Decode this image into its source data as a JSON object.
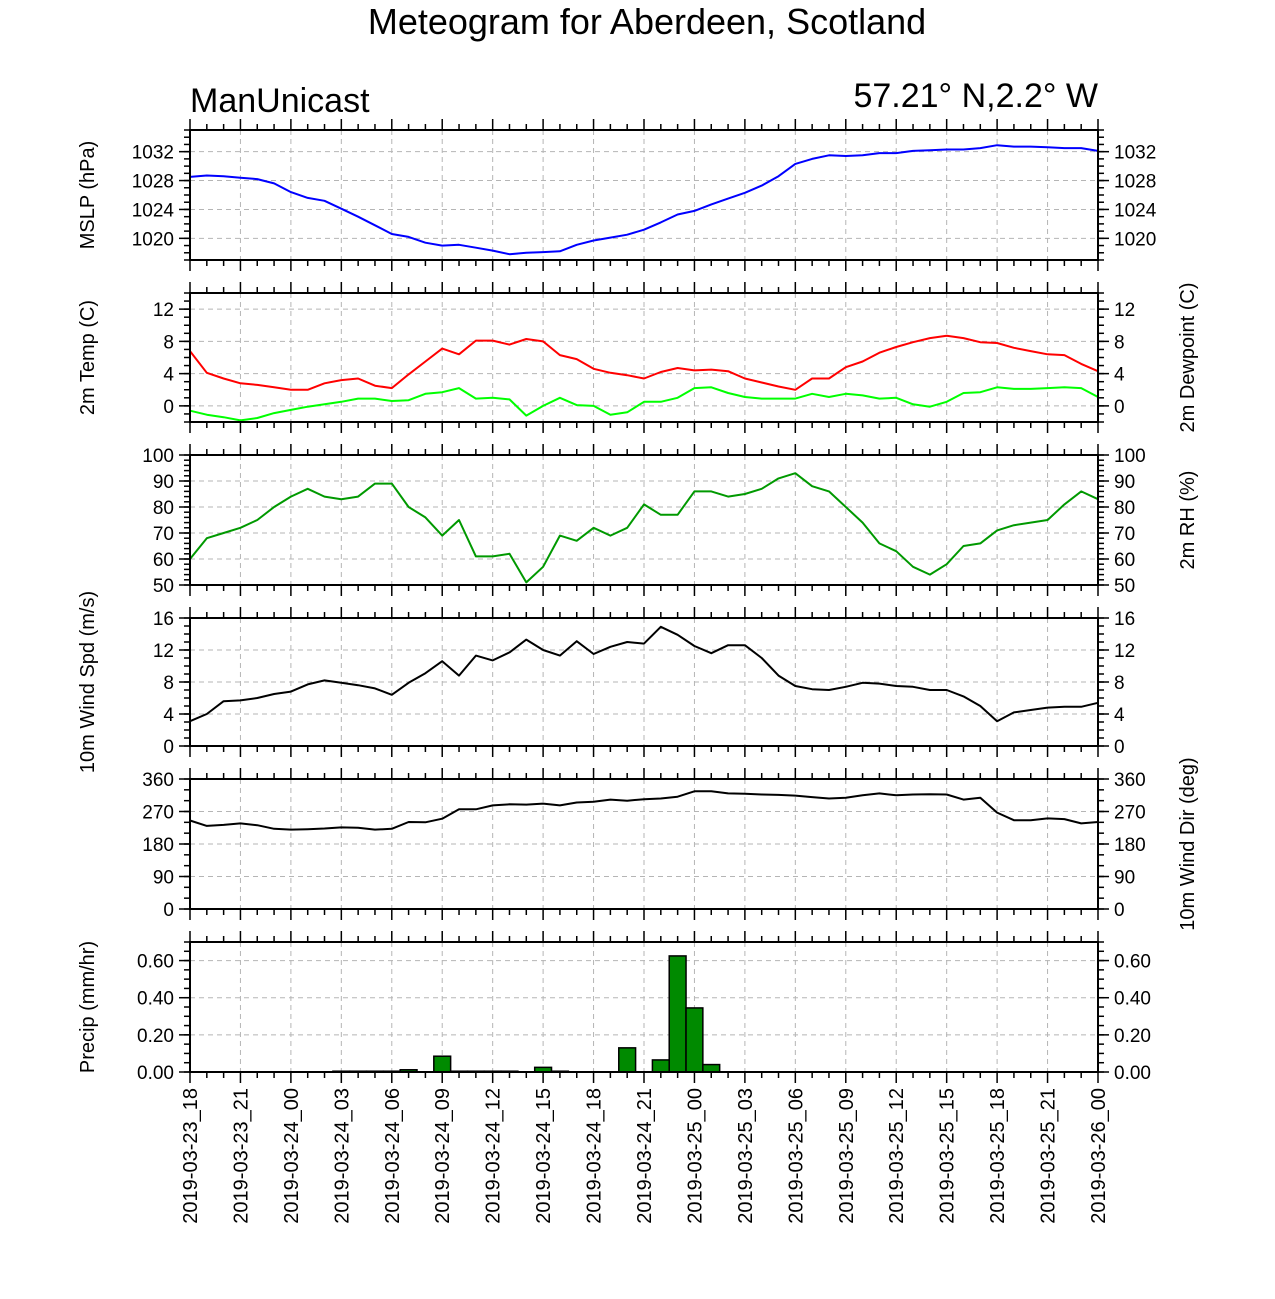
{
  "title": "Meteogram for Aberdeen, Scotland",
  "subtitle_left": "ManUnicast",
  "subtitle_right": "57.21° N,2.2° W",
  "time_labels": [
    "2019-03-23_18",
    "2019-03-23_21",
    "2019-03-24_00",
    "2019-03-24_03",
    "2019-03-24_06",
    "2019-03-24_09",
    "2019-03-24_12",
    "2019-03-24_15",
    "2019-03-24_18",
    "2019-03-24_21",
    "2019-03-25_00",
    "2019-03-25_03",
    "2019-03-25_06",
    "2019-03-25_09",
    "2019-03-25_12",
    "2019-03-25_15",
    "2019-03-25_18",
    "2019-03-25_21",
    "2019-03-26_00"
  ],
  "chart_data": [
    {
      "id": "mslp",
      "type": "line",
      "x_unit": "hours since 2019-03-23_18",
      "xlim": [
        0,
        54
      ],
      "ylabel_left": "MSLP (hPa)",
      "ylabel_right": "",
      "ylim": [
        1017,
        1035
      ],
      "yticks": [
        1020,
        1024,
        1028,
        1032
      ],
      "ytick_labels": [
        "1020",
        "1024",
        "1028",
        "1032"
      ],
      "minor_step": 1,
      "grid": true,
      "series": [
        {
          "color": "#0000ff",
          "x": [
            0,
            1,
            2,
            3,
            4,
            5,
            6,
            7,
            8,
            9,
            10,
            11,
            12,
            13,
            14,
            15,
            16,
            17,
            18,
            19,
            20,
            21,
            22,
            23,
            24,
            25,
            26,
            27,
            28,
            29,
            30,
            31,
            32,
            33,
            34,
            35,
            36,
            37,
            38,
            39,
            40,
            41,
            42,
            43,
            44,
            45,
            46,
            47,
            48,
            49,
            50,
            51,
            52,
            53,
            54
          ],
          "y": [
            1028.5,
            1028.7,
            1028.6,
            1028.4,
            1028.2,
            1027.6,
            1026.4,
            1025.6,
            1025.2,
            1024.1,
            1023.0,
            1021.8,
            1020.6,
            1020.2,
            1019.4,
            1019.0,
            1019.1,
            1018.7,
            1018.3,
            1017.8,
            1018.0,
            1018.1,
            1018.2,
            1019.1,
            1019.7,
            1020.1,
            1020.5,
            1021.2,
            1022.2,
            1023.3,
            1023.8,
            1024.7,
            1025.5,
            1026.3,
            1027.3,
            1028.6,
            1030.3,
            1031.0,
            1031.5,
            1031.4,
            1031.5,
            1031.8,
            1031.8,
            1032.1,
            1032.2,
            1032.3,
            1032.3,
            1032.5,
            1032.9,
            1032.7,
            1032.7,
            1032.6,
            1032.5,
            1032.5,
            1032.1
          ]
        }
      ]
    },
    {
      "id": "temp",
      "type": "line",
      "x_unit": "hours since 2019-03-23_18",
      "xlim": [
        0,
        54
      ],
      "ylabel_left": "2m Temp (C)",
      "ylabel_right": "2m Dewpoint (C)",
      "ylim": [
        -2,
        14
      ],
      "yticks": [
        0,
        4,
        8,
        12
      ],
      "ytick_labels": [
        "0",
        "4",
        "8",
        "12"
      ],
      "minor_step": 1,
      "grid": true,
      "series": [
        {
          "color": "#ff0000",
          "x": [
            0,
            1,
            2,
            3,
            4,
            5,
            6,
            7,
            8,
            9,
            10,
            11,
            12,
            13,
            14,
            15,
            16,
            17,
            18,
            19,
            20,
            21,
            22,
            23,
            24,
            25,
            26,
            27,
            28,
            29,
            30,
            31,
            32,
            33,
            34,
            35,
            36,
            37,
            38,
            39,
            40,
            41,
            42,
            43,
            44,
            45,
            46,
            47,
            48,
            49,
            50,
            51,
            52,
            53,
            54
          ],
          "y": [
            6.8,
            4.1,
            3.4,
            2.8,
            2.6,
            2.3,
            2.0,
            2.0,
            2.8,
            3.2,
            3.4,
            2.5,
            2.2,
            3.9,
            5.5,
            7.1,
            6.4,
            8.1,
            8.1,
            7.6,
            8.3,
            8.0,
            6.3,
            5.8,
            4.6,
            4.1,
            3.8,
            3.4,
            4.2,
            4.7,
            4.4,
            4.5,
            4.3,
            3.4,
            2.9,
            2.4,
            2.0,
            3.4,
            3.4,
            4.8,
            5.5,
            6.6,
            7.3,
            7.9,
            8.4,
            8.7,
            8.4,
            7.9,
            7.8,
            7.2,
            6.8,
            6.4,
            6.3,
            5.2,
            4.3
          ]
        },
        {
          "color": "#00ff00",
          "x": [
            0,
            1,
            2,
            3,
            4,
            5,
            6,
            7,
            8,
            9,
            10,
            11,
            12,
            13,
            14,
            15,
            16,
            17,
            18,
            19,
            20,
            21,
            22,
            23,
            24,
            25,
            26,
            27,
            28,
            29,
            30,
            31,
            32,
            33,
            34,
            35,
            36,
            37,
            38,
            39,
            40,
            41,
            42,
            43,
            44,
            45,
            46,
            47,
            48,
            49,
            50,
            51,
            52,
            53,
            54
          ],
          "y": [
            -0.6,
            -1.1,
            -1.4,
            -1.8,
            -1.5,
            -0.9,
            -0.5,
            -0.1,
            0.2,
            0.5,
            0.9,
            0.9,
            0.6,
            0.7,
            1.5,
            1.7,
            2.2,
            0.9,
            1.0,
            0.8,
            -1.2,
            0.0,
            1.0,
            0.1,
            0.0,
            -1.1,
            -0.8,
            0.5,
            0.5,
            1.0,
            2.2,
            2.3,
            1.6,
            1.1,
            0.9,
            0.9,
            0.9,
            1.5,
            1.1,
            1.5,
            1.3,
            0.9,
            1.0,
            0.2,
            -0.1,
            0.5,
            1.6,
            1.7,
            2.3,
            2.1,
            2.1,
            2.2,
            2.3,
            2.2,
            1.1
          ]
        }
      ]
    },
    {
      "id": "rh",
      "type": "line",
      "x_unit": "hours since 2019-03-23_18",
      "xlim": [
        0,
        54
      ],
      "ylabel_left": "",
      "ylabel_right": "2m RH (%)",
      "ylim": [
        50,
        100
      ],
      "yticks": [
        50,
        60,
        70,
        80,
        90,
        100
      ],
      "ytick_labels": [
        "50",
        "60",
        "70",
        "80",
        "90",
        "100"
      ],
      "minor_step": 2,
      "grid": true,
      "series": [
        {
          "color": "#009900",
          "x": [
            0,
            1,
            2,
            3,
            4,
            5,
            6,
            7,
            8,
            9,
            10,
            11,
            12,
            13,
            14,
            15,
            16,
            17,
            18,
            19,
            20,
            21,
            22,
            23,
            24,
            25,
            26,
            27,
            28,
            29,
            30,
            31,
            32,
            33,
            34,
            35,
            36,
            37,
            38,
            39,
            40,
            41,
            42,
            43,
            44,
            45,
            46,
            47,
            48,
            49,
            50,
            51,
            52,
            53,
            54
          ],
          "y": [
            60,
            68,
            70,
            72,
            75,
            80,
            84,
            87,
            84,
            83,
            84,
            89,
            89,
            80,
            76,
            69,
            75,
            61,
            61,
            62,
            51,
            57,
            69,
            67,
            72,
            69,
            72,
            81,
            77,
            77,
            86,
            86,
            84,
            85,
            87,
            91,
            93,
            88,
            86,
            80,
            74,
            66,
            63,
            57,
            54,
            58,
            65,
            66,
            71,
            73,
            74,
            75,
            81,
            86,
            83
          ]
        }
      ]
    },
    {
      "id": "wspd",
      "type": "line",
      "x_unit": "hours since 2019-03-23_18",
      "xlim": [
        0,
        54
      ],
      "ylabel_left": "10m Wind Spd (m/s)",
      "ylabel_right": "",
      "ylim": [
        0,
        16
      ],
      "yticks": [
        0,
        4,
        8,
        12,
        16
      ],
      "ytick_labels": [
        "0",
        "4",
        "8",
        "12",
        "16"
      ],
      "minor_step": 1,
      "grid": true,
      "series": [
        {
          "color": "#000000",
          "x": [
            0,
            1,
            2,
            3,
            4,
            5,
            6,
            7,
            8,
            9,
            10,
            11,
            12,
            13,
            14,
            15,
            16,
            17,
            18,
            19,
            20,
            21,
            22,
            23,
            24,
            25,
            26,
            27,
            28,
            29,
            30,
            31,
            32,
            33,
            34,
            35,
            36,
            37,
            38,
            39,
            40,
            41,
            42,
            43,
            44,
            45,
            46,
            47,
            48,
            49,
            50,
            51,
            52,
            53,
            54
          ],
          "y": [
            3.1,
            4.0,
            5.6,
            5.7,
            6.0,
            6.5,
            6.8,
            7.7,
            8.2,
            7.9,
            7.6,
            7.2,
            6.4,
            7.9,
            9.1,
            10.6,
            8.8,
            11.3,
            10.7,
            11.7,
            13.3,
            12.0,
            11.3,
            13.1,
            11.5,
            12.4,
            13.0,
            12.8,
            14.9,
            13.9,
            12.5,
            11.6,
            12.6,
            12.6,
            11.0,
            8.8,
            7.5,
            7.1,
            7.0,
            7.4,
            7.9,
            7.8,
            7.5,
            7.4,
            7.0,
            7.0,
            6.2,
            5.0,
            3.1,
            4.2,
            4.5,
            4.8,
            4.9,
            4.9,
            5.4
          ]
        }
      ]
    },
    {
      "id": "wdir",
      "type": "line",
      "x_unit": "hours since 2019-03-23_18",
      "xlim": [
        0,
        54
      ],
      "ylabel_left": "",
      "ylabel_right": "10m Wind Dir (deg)",
      "ylim": [
        0,
        360
      ],
      "yticks": [
        0,
        90,
        180,
        270,
        360
      ],
      "ytick_labels": [
        "0",
        "90",
        "180",
        "270",
        "360"
      ],
      "minor_step": 30,
      "grid": true,
      "series": [
        {
          "color": "#000000",
          "x": [
            0,
            1,
            2,
            3,
            4,
            5,
            6,
            7,
            8,
            9,
            10,
            11,
            12,
            13,
            14,
            15,
            16,
            17,
            18,
            19,
            20,
            21,
            22,
            23,
            24,
            25,
            26,
            27,
            28,
            29,
            30,
            31,
            32,
            33,
            34,
            35,
            36,
            37,
            38,
            39,
            40,
            41,
            42,
            43,
            44,
            45,
            46,
            47,
            48,
            49,
            50,
            51,
            52,
            53,
            54
          ],
          "y": [
            245,
            230,
            233,
            237,
            232,
            222,
            220,
            221,
            223,
            226,
            225,
            220,
            222,
            241,
            240,
            250,
            276,
            276,
            287,
            290,
            289,
            292,
            287,
            295,
            297,
            303,
            300,
            304,
            306,
            311,
            326,
            326,
            320,
            319,
            317,
            316,
            314,
            310,
            306,
            308,
            315,
            320,
            315,
            317,
            318,
            317,
            303,
            308,
            267,
            246,
            246,
            251,
            249,
            237,
            241
          ]
        }
      ]
    },
    {
      "id": "precip",
      "type": "bar",
      "x_unit": "hours since 2019-03-23_18",
      "xlim": [
        0,
        54
      ],
      "ylabel_left": "Precip (mm/hr)",
      "ylabel_right": "",
      "ylim": [
        0,
        0.7
      ],
      "yticks": [
        0,
        0.2,
        0.4,
        0.6
      ],
      "ytick_labels": [
        "0.00",
        "0.20",
        "0.40",
        "0.60"
      ],
      "minor_step": 0.05,
      "grid": true,
      "bar_color": "#008a00",
      "bar_width_hours": 1,
      "series": [
        {
          "color": "#008a00",
          "x": [
            9,
            10,
            11,
            12,
            13,
            15,
            16,
            17,
            18,
            19,
            21,
            22,
            26,
            28,
            29,
            30,
            31
          ],
          "y": [
            0.002,
            0.002,
            0.003,
            0.004,
            0.012,
            0.085,
            0.004,
            0.004,
            0.004,
            0.002,
            0.025,
            0.002,
            0.13,
            0.065,
            0.625,
            0.345,
            0.04
          ]
        }
      ]
    }
  ]
}
